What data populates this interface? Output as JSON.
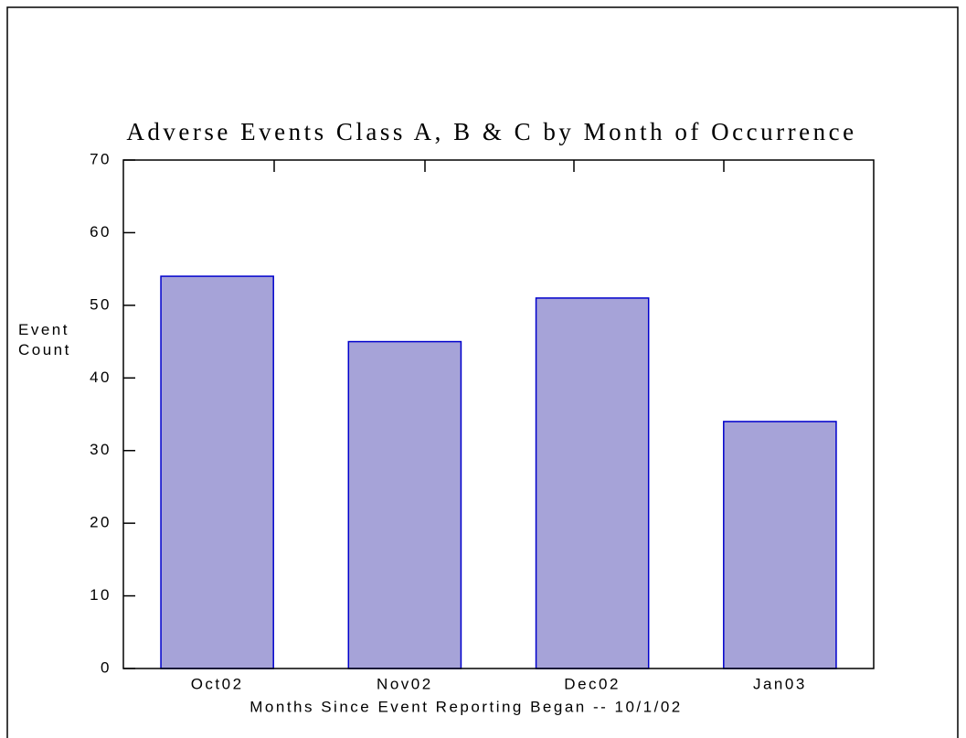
{
  "chart_data": {
    "type": "bar",
    "title": "Adverse Events Class A, B & C by Month of Occurrence",
    "x_label": "Months Since Event Reporting Began -- 10/1/02",
    "y_label": "Event Count",
    "categories": [
      "Oct02",
      "Nov02",
      "Dec02",
      "Jan03"
    ],
    "values": [
      54,
      45,
      51,
      34
    ],
    "color": "#a6a3d8",
    "edge_color": "#0000cc",
    "ylim": [
      0,
      70
    ],
    "yticks": [
      0,
      10,
      20,
      30,
      40,
      50,
      60,
      70
    ],
    "grid": false
  }
}
